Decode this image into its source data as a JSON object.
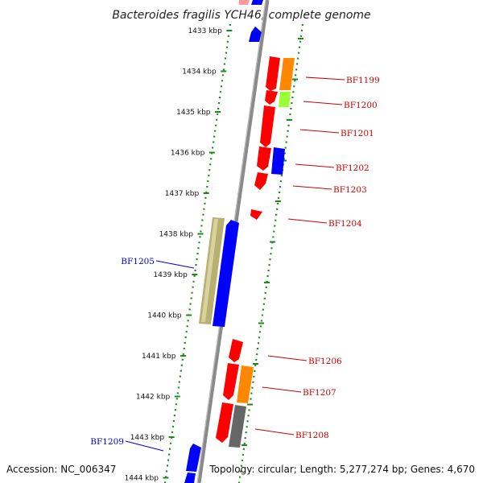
{
  "title": "Bacteroides fragilis YCH46, complete genome",
  "footer": {
    "accession": "Accession: NC_006347",
    "summary": "Topology: circular; Length: 5,277,274 bp; Genes: 4,670"
  },
  "colors": {
    "background": "#ffffff",
    "backbone": "#8a8a8a",
    "ruler_dots": "#1a8a1a",
    "forward_label": "#cc0000",
    "reverse_label": "#0000cc",
    "gene_red": "#ff0000",
    "gene_orange": "#ff8800",
    "gene_lime": "#99ff33",
    "gene_blue": "#0000ff",
    "gene_khaki": "#b8b070",
    "gene_gray": "#666666",
    "gene_pink": "#ff9999"
  },
  "ruler": {
    "ticks": [
      "1433 kbp",
      "1434 kbp",
      "1435 kbp",
      "1436 kbp",
      "1437 kbp",
      "1438 kbp",
      "1439 kbp",
      "1440 kbp",
      "1441 kbp",
      "1442 kbp",
      "1443 kbp",
      "1444 kbp"
    ]
  },
  "gene_labels": [
    {
      "name": "BF1199",
      "strand": "forward"
    },
    {
      "name": "BF1200",
      "strand": "forward"
    },
    {
      "name": "BF1201",
      "strand": "forward"
    },
    {
      "name": "BF1202",
      "strand": "forward"
    },
    {
      "name": "BF1203",
      "strand": "forward"
    },
    {
      "name": "BF1204",
      "strand": "forward"
    },
    {
      "name": "BF1205",
      "strand": "reverse"
    },
    {
      "name": "BF1206",
      "strand": "forward"
    },
    {
      "name": "BF1207",
      "strand": "forward"
    },
    {
      "name": "BF1208",
      "strand": "forward"
    },
    {
      "name": "BF1209",
      "strand": "reverse"
    }
  ]
}
